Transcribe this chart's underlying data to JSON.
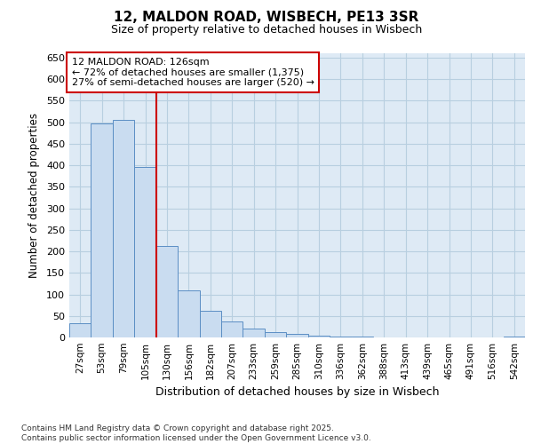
{
  "title1": "12, MALDON ROAD, WISBECH, PE13 3SR",
  "title2": "Size of property relative to detached houses in Wisbech",
  "xlabel": "Distribution of detached houses by size in Wisbech",
  "ylabel": "Number of detached properties",
  "categories": [
    "27sqm",
    "53sqm",
    "79sqm",
    "105sqm",
    "130sqm",
    "156sqm",
    "182sqm",
    "207sqm",
    "233sqm",
    "259sqm",
    "285sqm",
    "310sqm",
    "336sqm",
    "362sqm",
    "388sqm",
    "413sqm",
    "439sqm",
    "465sqm",
    "491sqm",
    "516sqm",
    "542sqm"
  ],
  "values": [
    32,
    497,
    505,
    395,
    213,
    110,
    62,
    38,
    20,
    12,
    8,
    5,
    3,
    2,
    1,
    1,
    1,
    1,
    0,
    1,
    3
  ],
  "bar_color": "#c9dcf0",
  "bar_edge_color": "#5b8ec4",
  "grid_color": "#b8cfe0",
  "background_color": "#deeaf5",
  "vline_color": "#cc0000",
  "ann_line1": "12 MALDON ROAD: 126sqm",
  "ann_line2": "← 72% of detached houses are smaller (1,375)",
  "ann_line3": "27% of semi-detached houses are larger (520) →",
  "annotation_box_color": "#cc0000",
  "annotation_box_facecolor": "white",
  "footer_text": "Contains HM Land Registry data © Crown copyright and database right 2025.\nContains public sector information licensed under the Open Government Licence v3.0.",
  "ylim": [
    0,
    660
  ],
  "yticks": [
    0,
    50,
    100,
    150,
    200,
    250,
    300,
    350,
    400,
    450,
    500,
    550,
    600,
    650
  ],
  "vline_idx": 4,
  "fig_width": 6.0,
  "fig_height": 5.0,
  "dpi": 100
}
